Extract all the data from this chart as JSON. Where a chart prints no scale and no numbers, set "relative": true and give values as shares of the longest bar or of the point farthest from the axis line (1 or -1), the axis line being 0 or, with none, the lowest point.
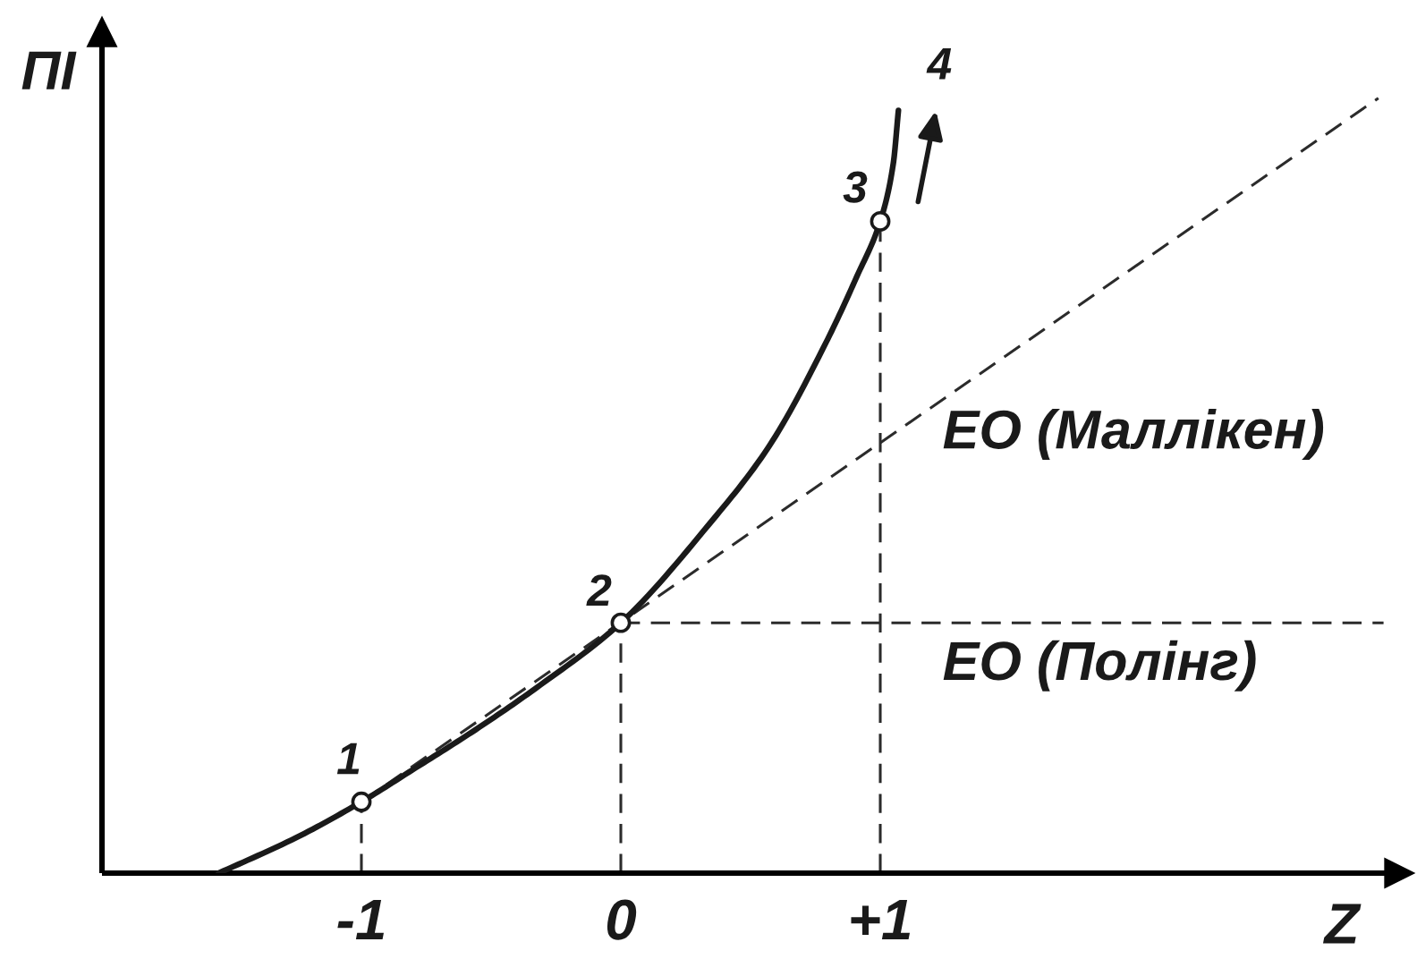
{
  "chart_data": {
    "type": "line",
    "relative": true,
    "xlabel": "Z",
    "ylabel": "ПІ",
    "xlim": [
      -2,
      3
    ],
    "xticks": [
      -1,
      0,
      {
        "value": 1,
        "label": "+1"
      }
    ],
    "tick_labels": "x",
    "series": [
      {
        "color": "#1a1a1a",
        "line_style": "solid",
        "x": [
          -1.55,
          -1.25,
          -1.0,
          -0.79,
          -0.56,
          -0.33,
          0.0,
          0.34,
          0.57,
          0.79,
          0.91,
          1.0,
          1.05,
          1.07
        ],
        "values": [
          0,
          0.046,
          0.092,
          0.136,
          0.185,
          0.238,
          0.323,
          0.45,
          0.55,
          0.684,
          0.77,
          0.841,
          0.915,
          0.984
        ]
      },
      {
        "color": "#2b2b2b",
        "line_style": "dashed",
        "x": [
          -1,
          2.92
        ],
        "values": [
          0.092,
          1
        ]
      },
      {
        "color": "#2b2b2b",
        "line_style": "dashed",
        "x": [
          0,
          2.94
        ],
        "values": [
          0.323,
          0.323
        ]
      },
      {
        "color": "#2b2b2b",
        "line_style": "dashed",
        "x": [
          -1,
          -1
        ],
        "values": [
          0,
          0.092
        ]
      },
      {
        "color": "#2b2b2b",
        "line_style": "dashed",
        "x": [
          0,
          0
        ],
        "values": [
          0,
          0.323
        ]
      },
      {
        "color": "#2b2b2b",
        "line_style": "dashed",
        "x": [
          1,
          1
        ],
        "values": [
          0,
          0.841
        ]
      },
      {
        "type": "scatter",
        "color": "#1a1a1a",
        "marker": "circle",
        "x": [
          -1,
          0,
          1
        ],
        "values": [
          0.092,
          0.323,
          0.841
        ]
      }
    ],
    "annotations": [
      {
        "text": "1",
        "x": -1,
        "y": 0.092
      },
      {
        "text": "2",
        "x": 0,
        "y": 0.323
      },
      {
        "text": "3",
        "x": 1,
        "y": 0.841
      },
      {
        "text": "4",
        "x": 1.07,
        "y": 0.984
      },
      {
        "text": "ЕО (Маллікен)",
        "x": 1.24,
        "y": 0.61
      },
      {
        "text": "ЕО (Полінг)",
        "x": 1.24,
        "y": 0.323
      }
    ]
  }
}
